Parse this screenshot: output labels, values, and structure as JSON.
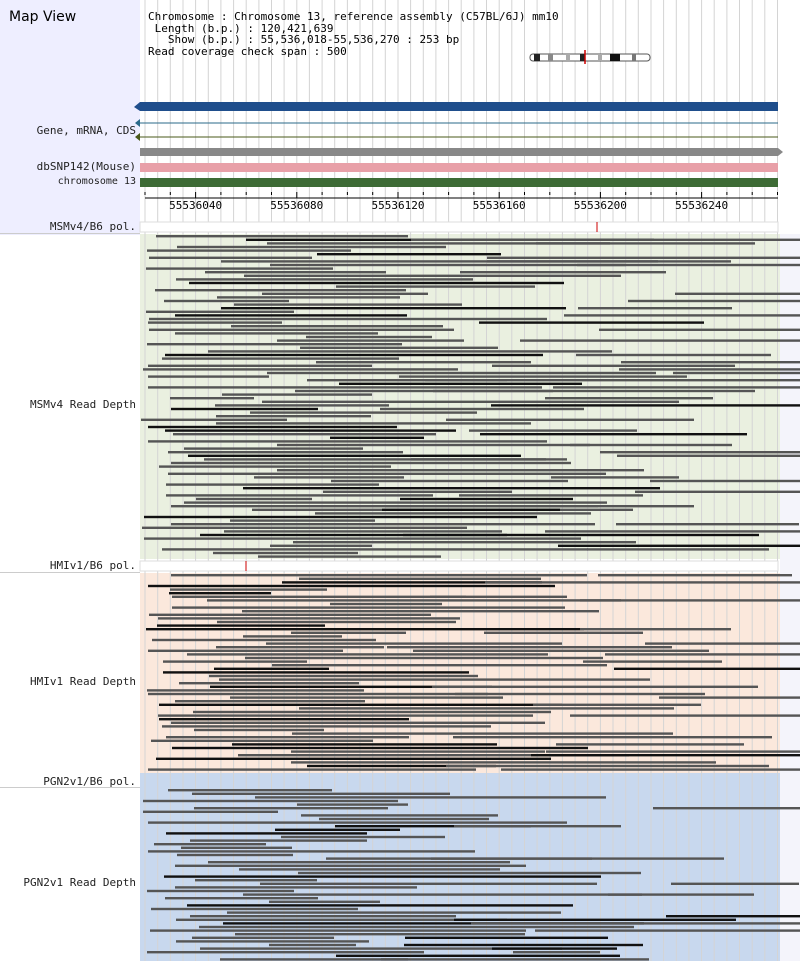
{
  "app": {
    "title": "Map View"
  },
  "info": {
    "chromosome_label": "Chromosome",
    "chromosome_value": "Chromosome 13, reference assembly (C57BL/6J) mm10",
    "length_label": "Length (b.p.)",
    "length_value": "120,421,639",
    "show_label": "Show (b.p.)",
    "show_value": "55,536,018-55,536,270 : 253 bp",
    "coverage_label": "Read coverage check span",
    "coverage_value": "500"
  },
  "tracks": {
    "gene_label": "Gene, mRNA, CDS",
    "snp_label": "dbSNP142(Mouse)",
    "chromosome_label": "chromosome 13",
    "msm_pol_label": "MSMv4/B6 pol.",
    "msm_depth_label": "MSMv4 Read Depth",
    "hmi_pol_label": "HMIv1/B6 pol.",
    "hmi_depth_label": "HMIv1 Read Depth",
    "pgn_pol_label": "PGN2v1/B6 pol.",
    "pgn_depth_label": "PGN2v1 Read Depth"
  },
  "ruler": {
    "ticks": [
      "55536040",
      "55536080",
      "55536120",
      "55536160",
      "55536200",
      "55536240"
    ]
  },
  "colors": {
    "gene_bar": "#1f4e8c",
    "snp_bar": "#e8a0a8",
    "chromosome_bar": "#3d6b35",
    "msm_bg": "#eaf0e0",
    "hmi_bg": "#fbe8dc",
    "pgn_bg": "#c8d8ee",
    "pol_marker": "#cc0000",
    "read": "#555555"
  }
}
